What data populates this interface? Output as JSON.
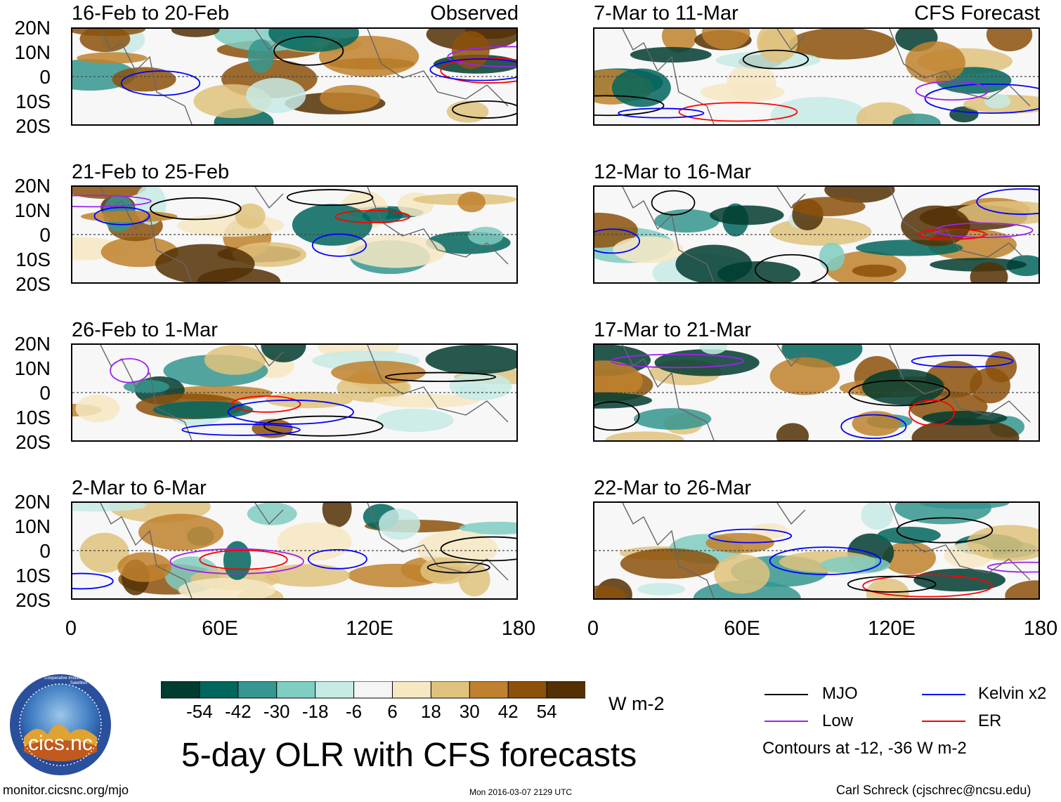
{
  "header": {
    "left_label": "Observed",
    "right_label": "CFS Forecast"
  },
  "panels": [
    {
      "period": "16-Feb to 20-Feb",
      "column": "observed"
    },
    {
      "period": "21-Feb to 25-Feb",
      "column": "observed"
    },
    {
      "period": "26-Feb to 1-Mar",
      "column": "observed"
    },
    {
      "period": "2-Mar to 6-Mar",
      "column": "observed"
    },
    {
      "period": "7-Mar to 11-Mar",
      "column": "forecast"
    },
    {
      "period": "12-Mar to 16-Mar",
      "column": "forecast"
    },
    {
      "period": "17-Mar to 21-Mar",
      "column": "forecast"
    },
    {
      "period": "22-Mar to 26-Mar",
      "column": "forecast"
    }
  ],
  "chart_data": {
    "type": "heatmap",
    "title": "5-day OLR with CFS forecasts",
    "variable": "OLR anomaly",
    "units": "W m-2",
    "x_axis": {
      "ticks": [
        "0",
        "60E",
        "120E",
        "180"
      ],
      "range": [
        0,
        180
      ]
    },
    "y_axis": {
      "ticks": [
        "20N",
        "10N",
        "0",
        "10S",
        "20S"
      ],
      "range": [
        -20,
        20
      ]
    },
    "colorbar": {
      "ticks": [
        "-54",
        "-42",
        "-30",
        "-18",
        "-6",
        "6",
        "18",
        "30",
        "42",
        "54"
      ],
      "colors": [
        "#013c30",
        "#01665e",
        "#35978f",
        "#80cdc1",
        "#c7eae5",
        "#f5f5f5",
        "#f6e8c3",
        "#dfc27d",
        "#bf812d",
        "#8c510a",
        "#543005"
      ]
    },
    "contour_note": "Contours at -12, -36 W m-2",
    "legend": [
      {
        "label": "MJO",
        "color": "#000000"
      },
      {
        "label": "Kelvin x2",
        "color": "#0000ff"
      },
      {
        "label": "Low",
        "color": "#a020f0"
      },
      {
        "label": "ER",
        "color": "#ff0000"
      }
    ]
  },
  "footer": {
    "url": "monitor.cicsnc.org/mjo",
    "timestamp": "Mon 2016-03-07 2129 UTC",
    "author": "Carl Schreck (cjschrec@ncsu.edu)",
    "logo_text": "cics.nc",
    "logo_ring": "Cooperative Institute for Climate and Satellites"
  }
}
